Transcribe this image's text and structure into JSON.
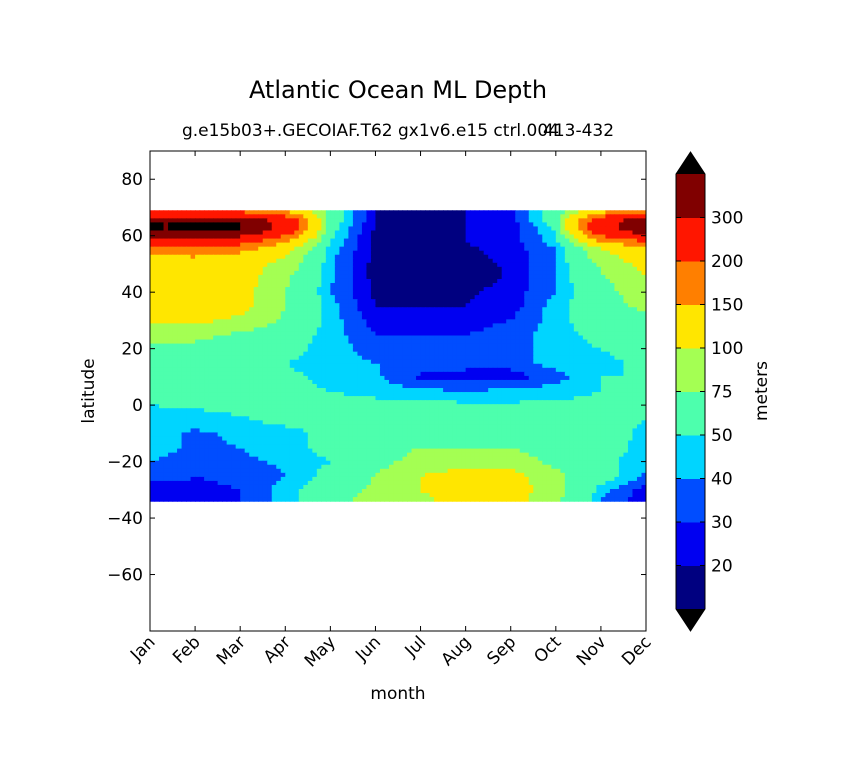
{
  "chart_data": {
    "type": "heatmap",
    "title": "Atlantic Ocean ML Depth",
    "subtitle": "g.e15b03+.GECOIAF.T62 gx1v6.e15 ctrl.004",
    "subtitle_overlap": "413-432",
    "xlabel": "month",
    "ylabel": "latitude",
    "x_ticks": [
      "Jan",
      "Feb",
      "Mar",
      "Apr",
      "May",
      "Jun",
      "Jul",
      "Aug",
      "Sep",
      "Oct",
      "Nov",
      "Dec"
    ],
    "y_ticks": [
      80,
      60,
      40,
      20,
      0,
      -20,
      -40,
      -60
    ],
    "y_tick_labels": [
      "80",
      "60",
      "40",
      "20",
      "0",
      "−20",
      "−40",
      "−60"
    ],
    "xlim": [
      0,
      11
    ],
    "ylim": [
      -80,
      90
    ],
    "data_lat_range": [
      -34,
      69
    ],
    "grid": false,
    "colorbar": {
      "label": "meters",
      "tick_labels": [
        "20",
        "30",
        "40",
        "50",
        "75",
        "100",
        "150",
        "200",
        "300"
      ],
      "levels": [
        10,
        20,
        30,
        40,
        50,
        75,
        100,
        150,
        200,
        300,
        400
      ],
      "colors": [
        "#000080",
        "#0000f1",
        "#004dff",
        "#00d5ff",
        "#4dffad",
        "#a4ff53",
        "#ffe600",
        "#ff7f00",
        "#ff1600",
        "#800000"
      ],
      "extend": "both",
      "under_color": "#000000",
      "over_color": "#000000"
    },
    "grid_lats": [
      69,
      65,
      62,
      58,
      55,
      50,
      45,
      40,
      35,
      30,
      25,
      20,
      15,
      10,
      5,
      0,
      -5,
      -10,
      -15,
      -20,
      -25,
      -30,
      -34
    ],
    "values": [
      [
        160,
        160,
        160,
        140,
        60,
        20,
        15,
        20,
        25,
        60,
        120,
        160
      ],
      [
        400,
        400,
        400,
        260,
        60,
        20,
        15,
        20,
        25,
        60,
        250,
        400
      ],
      [
        400,
        400,
        400,
        250,
        55,
        18,
        15,
        20,
        25,
        50,
        250,
        360
      ],
      [
        260,
        260,
        230,
        150,
        50,
        18,
        15,
        20,
        25,
        45,
        150,
        200
      ],
      [
        160,
        180,
        160,
        110,
        45,
        18,
        15,
        18,
        25,
        40,
        95,
        130
      ],
      [
        120,
        120,
        115,
        90,
        42,
        16,
        12,
        15,
        22,
        40,
        80,
        110
      ],
      [
        120,
        120,
        115,
        80,
        42,
        16,
        10,
        12,
        22,
        40,
        70,
        100
      ],
      [
        115,
        115,
        110,
        75,
        40,
        18,
        15,
        18,
        25,
        40,
        65,
        90
      ],
      [
        110,
        110,
        110,
        75,
        45,
        20,
        20,
        20,
        25,
        45,
        65,
        80
      ],
      [
        105,
        105,
        95,
        70,
        45,
        25,
        25,
        25,
        30,
        45,
        60,
        70
      ],
      [
        90,
        85,
        70,
        60,
        45,
        30,
        30,
        30,
        35,
        45,
        55,
        60
      ],
      [
        70,
        65,
        60,
        55,
        45,
        35,
        35,
        35,
        35,
        45,
        50,
        55
      ],
      [
        60,
        55,
        52,
        50,
        45,
        40,
        38,
        35,
        35,
        45,
        48,
        52
      ],
      [
        55,
        55,
        55,
        52,
        48,
        42,
        28,
        25,
        25,
        35,
        50,
        50
      ],
      [
        55,
        55,
        55,
        52,
        50,
        45,
        42,
        40,
        42,
        45,
        50,
        52
      ],
      [
        50,
        52,
        55,
        55,
        55,
        55,
        55,
        52,
        52,
        52,
        55,
        55
      ],
      [
        45,
        45,
        48,
        55,
        55,
        55,
        55,
        55,
        55,
        55,
        52,
        50
      ],
      [
        45,
        38,
        42,
        45,
        55,
        60,
        60,
        60,
        60,
        60,
        55,
        48
      ],
      [
        45,
        38,
        40,
        45,
        55,
        65,
        75,
        75,
        75,
        65,
        58,
        45
      ],
      [
        40,
        35,
        38,
        42,
        50,
        65,
        85,
        90,
        85,
        70,
        55,
        42
      ],
      [
        38,
        30,
        32,
        40,
        55,
        75,
        100,
        110,
        110,
        80,
        58,
        38
      ],
      [
        22,
        28,
        30,
        45,
        60,
        80,
        100,
        115,
        115,
        85,
        45,
        25
      ],
      [
        20,
        28,
        30,
        45,
        65,
        85,
        95,
        110,
        110,
        80,
        40,
        22
      ]
    ]
  }
}
